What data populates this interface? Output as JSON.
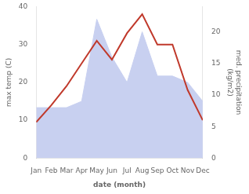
{
  "chart_data": {
    "type": "line",
    "categories": [
      "Jan",
      "Feb",
      "Mar",
      "Apr",
      "May",
      "Jun",
      "Jul",
      "Aug",
      "Sep",
      "Oct",
      "Nov",
      "Dec"
    ],
    "series": [
      {
        "type": "area",
        "axis": "y2",
        "color": "#c8d0f0",
        "values": [
          8,
          8,
          8,
          9,
          22,
          16,
          12,
          20,
          13,
          13,
          12,
          9
        ]
      },
      {
        "type": "line",
        "color": "#c0392b",
        "values": [
          9.5,
          14,
          19,
          25,
          31,
          26,
          33,
          38,
          30,
          30,
          18,
          10
        ]
      }
    ],
    "xlabel": "date (month)",
    "ylabel": "max temp (C)",
    "y2label": "med. precipitation\n(kg/m2)",
    "ylim": [
      0,
      40
    ],
    "yticks": [
      0,
      10,
      20,
      30,
      40
    ],
    "y2lim": [
      0,
      24
    ],
    "y2ticks": [
      0,
      5,
      10,
      15,
      20
    ],
    "grid": false
  }
}
